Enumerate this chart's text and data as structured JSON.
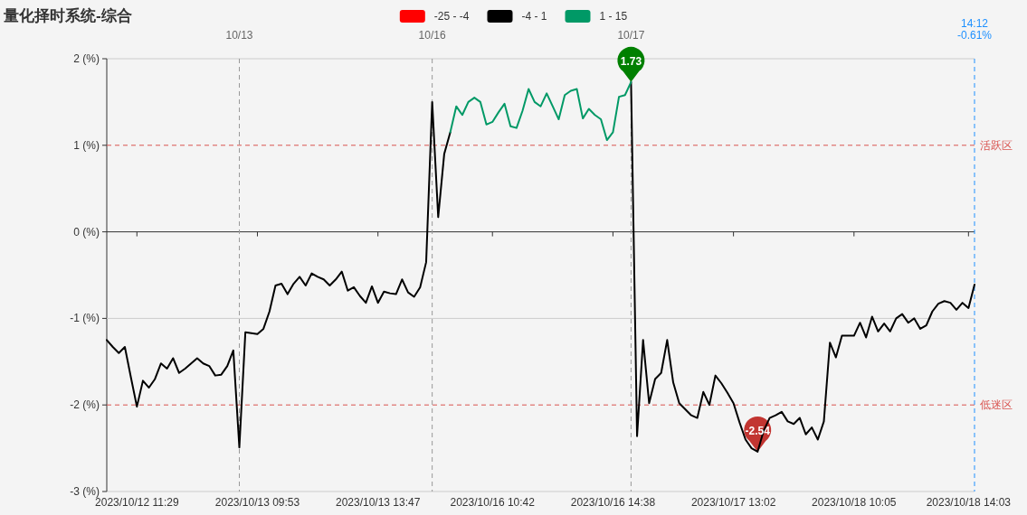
{
  "chart_data": {
    "type": "line",
    "title": "量化择时系统-综合",
    "legend": "top",
    "ylim": [
      -3,
      2
    ],
    "categories": [
      null,
      null,
      null,
      null,
      null,
      "2023/10/12 11:29",
      null,
      null,
      null,
      null,
      null,
      null,
      null,
      null,
      null,
      null,
      null,
      null,
      null,
      null,
      null,
      null,
      null,
      null,
      null,
      "2023/10/13 09:53",
      null,
      null,
      null,
      null,
      null,
      null,
      null,
      null,
      null,
      null,
      null,
      null,
      null,
      null,
      null,
      null,
      null,
      null,
      null,
      "2023/10/13 13:47",
      null,
      null,
      null,
      null,
      null,
      null,
      null,
      null,
      null,
      null,
      null,
      null,
      null,
      null,
      null,
      null,
      null,
      null,
      "2023/10/16 10:42",
      null,
      null,
      null,
      null,
      null,
      null,
      null,
      null,
      null,
      null,
      null,
      null,
      null,
      null,
      null,
      null,
      null,
      null,
      null,
      "2023/10/16 14:38",
      null,
      null,
      null,
      null,
      null,
      null,
      null,
      null,
      null,
      null,
      null,
      null,
      null,
      null,
      null,
      null,
      null,
      null,
      null,
      "2023/10/17 13:02",
      null,
      null,
      null,
      null,
      null,
      null,
      null,
      null,
      null,
      null,
      null,
      null,
      null,
      null,
      null,
      null,
      null,
      null,
      null,
      "2023/10/18 10:05",
      null,
      null,
      null,
      null,
      null,
      null,
      null,
      null,
      null,
      null,
      null,
      null,
      null,
      null,
      null,
      null,
      null,
      null,
      "2023/10/18 14:03",
      null
    ],
    "yticks": [
      {
        "value": -3,
        "label": "-3 (%)"
      },
      {
        "value": -2,
        "label": "-2 (%)"
      },
      {
        "value": -1,
        "label": "-1 (%)"
      },
      {
        "value": 0,
        "label": "0 (%)"
      },
      {
        "value": 1,
        "label": "1 (%)"
      },
      {
        "value": 2,
        "label": "2 (%)"
      }
    ],
    "series": [
      {
        "name": "-25 - -4",
        "color": "#ff0000",
        "values": [
          null,
          null,
          null,
          null,
          null,
          null,
          null,
          null,
          null,
          null,
          null,
          null,
          null,
          null,
          null,
          null,
          null,
          null,
          null,
          null,
          null,
          null,
          null,
          null,
          null,
          null,
          null,
          null,
          null,
          null,
          null,
          null,
          null,
          null,
          null,
          null,
          null,
          null,
          null,
          null,
          null,
          null,
          null,
          null,
          null,
          null,
          null,
          null,
          null,
          null,
          null,
          null,
          null,
          null,
          null,
          null,
          null,
          null,
          null,
          null,
          null,
          null,
          null,
          null,
          null,
          null,
          null,
          null,
          null,
          null,
          null,
          null,
          null,
          null,
          null,
          null,
          null,
          null,
          null,
          null,
          null,
          null,
          null,
          null,
          null,
          null,
          null,
          null,
          null,
          null,
          null,
          null,
          null,
          null,
          null,
          null,
          null,
          null,
          null,
          null,
          null,
          null,
          null,
          null,
          null,
          null,
          null,
          null,
          null,
          null,
          null,
          null,
          null,
          null,
          null,
          null,
          null,
          null,
          null,
          null,
          null,
          null,
          null,
          null,
          null,
          null,
          null,
          null,
          null,
          null,
          null,
          null,
          null,
          null,
          null,
          null,
          null,
          null,
          null,
          null,
          null,
          null,
          null,
          null,
          null
        ]
      },
      {
        "name": "-4 - 1",
        "color": "#000000",
        "values": [
          -1.25,
          -1.33,
          -1.4,
          -1.33,
          -1.68,
          -2.02,
          -1.72,
          -1.8,
          -1.7,
          -1.52,
          -1.58,
          -1.46,
          -1.63,
          -1.58,
          -1.52,
          -1.46,
          -1.52,
          -1.55,
          -1.66,
          -1.65,
          -1.55,
          -1.37,
          -2.49,
          -1.16,
          -1.17,
          -1.18,
          -1.12,
          -0.92,
          -0.62,
          -0.6,
          -0.72,
          -0.6,
          -0.52,
          -0.62,
          -0.48,
          -0.52,
          -0.55,
          -0.62,
          -0.55,
          -0.46,
          -0.68,
          -0.64,
          -0.74,
          -0.82,
          -0.63,
          -0.82,
          -0.69,
          -0.71,
          -0.72,
          -0.55,
          -0.7,
          -0.75,
          -0.64,
          -0.35,
          1.5,
          0.17,
          0.9,
          1.15,
          null,
          null,
          null,
          null,
          null,
          null,
          null,
          null,
          null,
          null,
          null,
          null,
          null,
          null,
          null,
          null,
          null,
          null,
          null,
          null,
          null,
          null,
          null,
          null,
          null,
          null,
          null,
          null,
          null,
          1.73,
          -2.36,
          -1.25,
          -1.98,
          -1.7,
          -1.63,
          -1.25,
          -1.74,
          -1.98,
          -2.05,
          -2.12,
          -2.15,
          -1.85,
          -2.0,
          -1.66,
          -1.75,
          -1.86,
          -1.98,
          -2.2,
          -2.4,
          -2.5,
          -2.54,
          -2.3,
          -2.15,
          -2.12,
          -2.08,
          -2.19,
          -2.22,
          -2.15,
          -2.34,
          -2.26,
          -2.4,
          -2.19,
          -1.28,
          -1.45,
          -1.2,
          -1.2,
          -1.2,
          -1.05,
          -1.22,
          -0.98,
          -1.15,
          -1.06,
          -1.15,
          -1.0,
          -0.95,
          -1.05,
          -1.0,
          -1.12,
          -1.08,
          -0.92,
          -0.83,
          -0.8,
          -0.82,
          -0.9,
          -0.82,
          -0.88,
          -0.61
        ]
      },
      {
        "name": "1 - 15",
        "color": "#009966",
        "values": [
          null,
          null,
          null,
          null,
          null,
          null,
          null,
          null,
          null,
          null,
          null,
          null,
          null,
          null,
          null,
          null,
          null,
          null,
          null,
          null,
          null,
          null,
          null,
          null,
          null,
          null,
          null,
          null,
          null,
          null,
          null,
          null,
          null,
          null,
          null,
          null,
          null,
          null,
          null,
          null,
          null,
          null,
          null,
          null,
          null,
          null,
          null,
          null,
          null,
          null,
          null,
          null,
          null,
          null,
          null,
          null,
          null,
          1.15,
          1.45,
          1.35,
          1.5,
          1.55,
          1.5,
          1.24,
          1.27,
          1.38,
          1.48,
          1.22,
          1.2,
          1.4,
          1.65,
          1.5,
          1.45,
          1.6,
          1.45,
          1.3,
          1.58,
          1.63,
          1.65,
          1.31,
          1.42,
          1.35,
          1.3,
          1.06,
          1.15,
          1.56,
          1.58,
          1.73,
          null,
          null,
          null,
          null,
          null,
          null,
          null,
          null,
          null,
          null,
          null,
          null,
          null,
          null,
          null,
          null,
          null,
          null,
          null,
          null,
          null,
          null,
          null,
          null,
          null,
          null,
          null,
          null,
          null,
          null,
          null,
          null,
          null,
          null,
          null,
          null,
          null,
          null,
          null,
          null,
          null,
          null,
          null,
          null,
          null,
          null,
          null,
          null,
          null,
          null,
          null,
          null,
          null,
          null,
          null,
          null,
          null
        ]
      }
    ],
    "ref_lines": [
      {
        "axis": "y",
        "value": -1,
        "color": "#cccccc",
        "line_style": "solid"
      },
      {
        "axis": "y",
        "value": 1,
        "label": "活跃区",
        "color": "#d9534f",
        "line_style": "dashed"
      },
      {
        "axis": "y",
        "value": -2,
        "label": "低迷区",
        "color": "#d9534f",
        "line_style": "dashed"
      }
    ],
    "annotations": [
      "10/13",
      "10/16",
      "10/17",
      "14:12\n-0.61%",
      {
        "text": "1.73",
        "y": 1.73
      },
      {
        "text": "-2.54",
        "y": -2.54
      }
    ]
  }
}
